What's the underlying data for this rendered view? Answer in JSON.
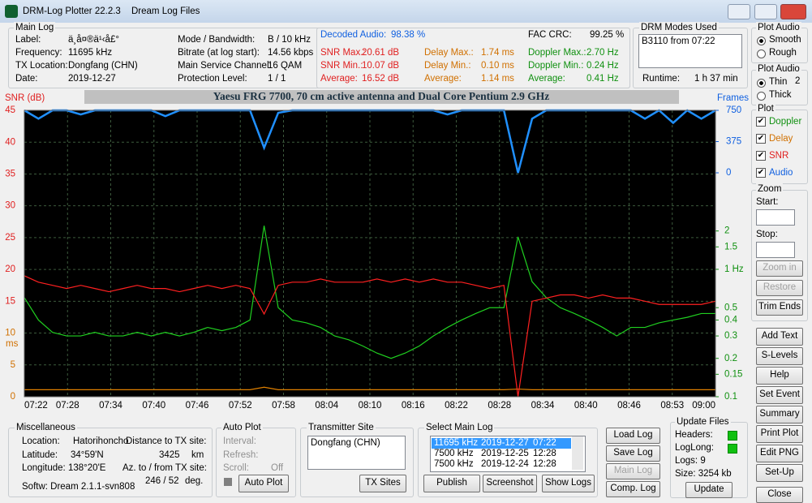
{
  "window": {
    "app": "DRM-Log Plotter 22.2.3",
    "subtitle": "Dream Log Files"
  },
  "main_log": {
    "heading": "Main Log",
    "col1": [
      [
        "Label:",
        "ä¸­å¤®ä¹‹å£°"
      ],
      [
        "Frequency:",
        "11695   kHz"
      ],
      [
        "TX Location:",
        "Dongfang (CHN)"
      ],
      [
        "Date:",
        "2019-12-27"
      ]
    ],
    "col2": [
      [
        "Mode / Bandwidth:",
        "B / 10 kHz"
      ],
      [
        "Bitrate (at log start):",
        "14.56 kbps"
      ],
      [
        "Main Service Channel:",
        "16  QAM"
      ],
      [
        "Protection Level:",
        "1 / 1"
      ]
    ],
    "decoded_audio": [
      "Decoded Audio:",
      "98.38 %"
    ],
    "fac_crc": [
      "FAC  CRC:",
      "99.25 %"
    ],
    "snr": [
      [
        "SNR Max.:",
        "20.61  dB"
      ],
      [
        "SNR Min.:",
        "10.07  dB"
      ],
      [
        "Average:",
        "16.52  dB"
      ]
    ],
    "delay": [
      [
        "Delay Max.:",
        "1.74   ms"
      ],
      [
        "Delay Min.:",
        "0.10   ms"
      ],
      [
        "Average:",
        "1.14   ms"
      ]
    ],
    "doppler": [
      [
        "Doppler Max.:",
        "2.70 Hz"
      ],
      [
        "Doppler Min.:",
        "0.24 Hz"
      ],
      [
        "Average:",
        "0.41 Hz"
      ]
    ]
  },
  "modes": {
    "heading": "DRM Modes Used",
    "item": "B3110 from 07:22",
    "runtime_label": "Runtime:",
    "runtime": "1 h 37 min"
  },
  "plot_audio_1": {
    "heading": "Plot Audio",
    "options": [
      "Smooth",
      "Rough"
    ]
  },
  "plot_audio_2": {
    "heading": "Plot Audio",
    "options": [
      "Thin",
      "Thick"
    ],
    "width": "2"
  },
  "plot": {
    "heading": "Plot",
    "options": [
      "Doppler",
      "Delay",
      "SNR",
      "Audio"
    ]
  },
  "zoom": {
    "heading": "Zoom",
    "start": "Start:",
    "stop": "Stop:",
    "buttons": [
      "Zoom in",
      "Restore",
      "Trim Ends"
    ]
  },
  "side_buttons": [
    "Add Text",
    "S-Levels",
    "Help",
    "Set Event",
    "Summary",
    "Print Plot",
    "Edit PNG",
    "Set-Up"
  ],
  "close": "Close",
  "chart_data": {
    "type": "line",
    "title": "Yaesu FRG 7700, 70 cm active antenna and Dual Core Pentium 2.9 GHz",
    "ylabel": "SNR (dB)",
    "y2label": "Frames",
    "delay_label": "ms",
    "xtick_labels": [
      "07:22",
      "07:28",
      "07:34",
      "07:40",
      "07:46",
      "07:52",
      "07:58",
      "08:04",
      "08:10",
      "08:16",
      "08:22",
      "08:28",
      "08:34",
      "08:40",
      "08:46",
      "08:53",
      "09:00"
    ],
    "ylim": [
      0,
      45
    ],
    "yticks": [
      15,
      20,
      25,
      30,
      35,
      40,
      45
    ],
    "delay_ticks": [
      0,
      5,
      10
    ],
    "doppler_lim": [
      0.1,
      17.7
    ],
    "log_scale_doppler": true,
    "doppler_ticks": [
      0.1,
      0.15,
      0.2,
      0.3,
      0.4,
      0.5,
      {
        "value": 1,
        "label": "1 Hz"
      },
      1.5,
      2
    ],
    "frames_lim": [
      -2688,
      750
    ],
    "frames_ticks": [
      0,
      375,
      750
    ],
    "grid": true,
    "series": [
      {
        "name": "SNR",
        "color": "#ff2020",
        "axis": "y",
        "values": [
          19,
          18,
          17.5,
          17,
          17.5,
          17,
          16.5,
          17,
          17.5,
          17,
          17,
          16.5,
          17,
          17.5,
          17,
          17.5,
          17,
          13,
          17.5,
          18,
          18,
          18.5,
          18,
          18,
          18,
          18.5,
          18,
          18.5,
          18,
          18.5,
          18,
          18,
          17.5,
          17,
          17.5,
          0,
          15,
          15.5,
          16,
          16,
          15.5,
          16,
          15.5,
          15.5,
          15,
          14.5,
          14.5,
          14.5,
          14.5,
          15
        ]
      },
      {
        "name": "Doppler",
        "color": "#20d020",
        "axis": "doppler",
        "values": [
          0.6,
          0.4,
          0.32,
          0.3,
          0.3,
          0.32,
          0.3,
          0.3,
          0.32,
          0.3,
          0.32,
          0.3,
          0.32,
          0.35,
          0.33,
          0.35,
          0.4,
          2.2,
          0.5,
          0.4,
          0.38,
          0.35,
          0.3,
          0.28,
          0.25,
          0.22,
          0.2,
          0.22,
          0.25,
          0.3,
          0.35,
          0.4,
          0.45,
          0.5,
          0.5,
          1.8,
          0.8,
          0.6,
          0.5,
          0.45,
          0.4,
          0.35,
          0.3,
          0.35,
          0.35,
          0.38,
          0.4,
          0.42,
          0.45,
          0.45
        ]
      },
      {
        "name": "Delay",
        "color": "#e08000",
        "axis": "y",
        "values": [
          1.1,
          1.1,
          1.1,
          1.1,
          1.1,
          1.1,
          1.1,
          1.1,
          1.1,
          1.1,
          1.1,
          1.1,
          1.1,
          1.1,
          1.1,
          1.1,
          1.1,
          1.5,
          1.1,
          1.1,
          1.1,
          1.1,
          1.1,
          1.1,
          1.1,
          1.1,
          1.1,
          1.1,
          1.1,
          1.1,
          1.1,
          1.1,
          1.1,
          1.1,
          1.1,
          1.2,
          1.1,
          1.1,
          1.1,
          1.1,
          1.1,
          1.1,
          1.1,
          1.1,
          1.1,
          1.1,
          1.1,
          1.1,
          1.1,
          1.1
        ]
      },
      {
        "name": "Audio",
        "color": "#2090ff",
        "axis": "frames",
        "values": [
          750,
          650,
          750,
          750,
          700,
          750,
          750,
          750,
          750,
          750,
          680,
          750,
          750,
          750,
          750,
          750,
          750,
          300,
          720,
          750,
          750,
          750,
          750,
          750,
          750,
          750,
          750,
          750,
          750,
          750,
          700,
          750,
          750,
          750,
          750,
          0,
          650,
          750,
          750,
          750,
          750,
          750,
          750,
          750,
          650,
          750,
          600,
          750,
          650,
          750
        ]
      }
    ]
  },
  "misc": {
    "heading": "Miscellaneous",
    "location": [
      "Location:",
      "Hatorihoncho"
    ],
    "distance": [
      "Distance to TX site:",
      "3425",
      "km"
    ],
    "latitude": [
      "Latitude:",
      "34°59'N"
    ],
    "longitude": [
      "Longitude:",
      "138°20'E"
    ],
    "azimuth": [
      "Az. to / from TX site:",
      "246 / 52",
      "deg."
    ],
    "software": "Softw: Dream 2.1.1-svn808"
  },
  "auto_plot": {
    "heading": "Auto Plot",
    "interval": "Interval:",
    "refresh": "Refresh:",
    "scroll": [
      "Scroll:",
      "Off"
    ],
    "button": "Auto Plot"
  },
  "tx_site": {
    "heading": "Transmitter Site",
    "item": "Dongfang (CHN)",
    "button": "TX Sites"
  },
  "select_log": {
    "heading": "Select Main Log",
    "rows": [
      [
        "11695 kHz",
        "2019-12-27",
        "07:22"
      ],
      [
        "7500 kHz",
        "2019-12-25",
        "12:28"
      ],
      [
        "7500 kHz",
        "2019-12-24",
        "12:28"
      ]
    ],
    "buttons": [
      "Publish",
      "Screenshot",
      "Show Logs"
    ]
  },
  "log_buttons": [
    "Load Log",
    "Save Log",
    "Main Log",
    "Comp. Log"
  ],
  "update": {
    "heading": "Update Files",
    "headers": "Headers:",
    "loglong": "LogLong:",
    "logs": "Logs: 9",
    "size": "Size:  3254 kb",
    "button": "Update"
  }
}
